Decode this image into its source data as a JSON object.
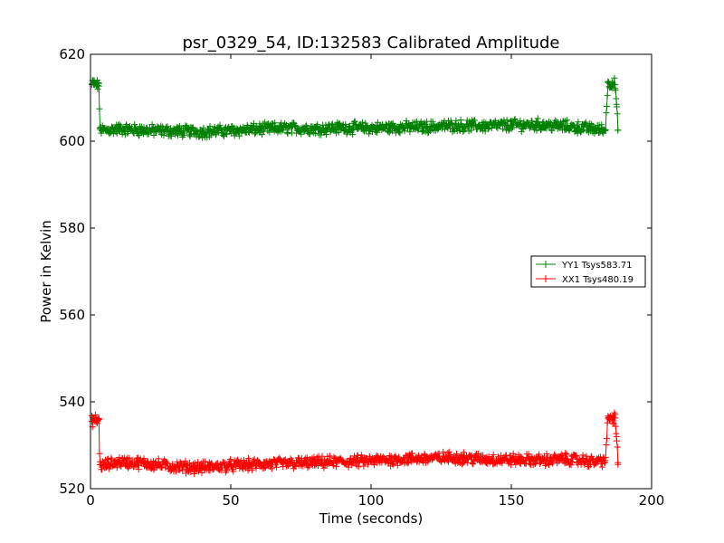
{
  "chart_data": {
    "type": "line",
    "title": "psr_0329_54, ID:132583 Calibrated Amplitude",
    "xlabel": "Time (seconds)",
    "ylabel": "Power in Kelvin",
    "xlim": [
      0,
      200
    ],
    "ylim": [
      520,
      620
    ],
    "xticks": [
      0,
      50,
      100,
      150,
      200
    ],
    "xtick_labels": [
      "0",
      "50",
      "100",
      "150",
      "200"
    ],
    "yticks": [
      520,
      540,
      560,
      580,
      600,
      620
    ],
    "ytick_labels": [
      "520",
      "540",
      "560",
      "580",
      "600",
      "620"
    ],
    "grid": false,
    "legend_position": "center-right",
    "marker": "+",
    "series": [
      {
        "name": "YY1 Tsys583.71",
        "color": "#008000",
        "x": [
          0.5,
          1.0,
          1.5,
          2.0,
          2.5,
          3.0,
          3.3,
          4.5,
          10,
          20,
          30,
          40,
          50,
          60,
          70,
          80,
          90,
          100,
          110,
          120,
          130,
          140,
          150,
          160,
          170,
          180,
          183.5,
          184.5,
          185,
          186,
          187,
          187.5,
          188
        ],
        "y": [
          613,
          613.5,
          613,
          613.2,
          612.8,
          613.3,
          603,
          602.5,
          602.8,
          602.5,
          602.3,
          602.2,
          602.4,
          602.8,
          603.0,
          602.9,
          603.1,
          603.0,
          603.2,
          603.3,
          603.6,
          603.5,
          603.7,
          603.8,
          603.4,
          602.8,
          602.5,
          613.5,
          613.2,
          613.5,
          613.0,
          608.5,
          602.5
        ]
      },
      {
        "name": "XX1 Tsys480.19",
        "color": "#ff0000",
        "x": [
          0.5,
          1.0,
          1.5,
          2.0,
          2.5,
          3.0,
          3.3,
          4.5,
          10,
          20,
          30,
          40,
          50,
          60,
          70,
          80,
          90,
          100,
          110,
          120,
          130,
          140,
          150,
          160,
          170,
          180,
          183.5,
          184.5,
          185,
          186,
          187,
          187.5,
          188
        ],
        "y": [
          535.5,
          536,
          535.7,
          535.8,
          535.5,
          535.9,
          525.5,
          525.3,
          526.2,
          525.8,
          525.1,
          524.9,
          525.3,
          525.6,
          525.8,
          526.0,
          526.2,
          526.4,
          526.8,
          527.0,
          527.2,
          526.8,
          526.7,
          526.6,
          526.8,
          526.2,
          526.5,
          536.2,
          536.4,
          536.0,
          536.3,
          532.0,
          526.0
        ]
      }
    ]
  }
}
